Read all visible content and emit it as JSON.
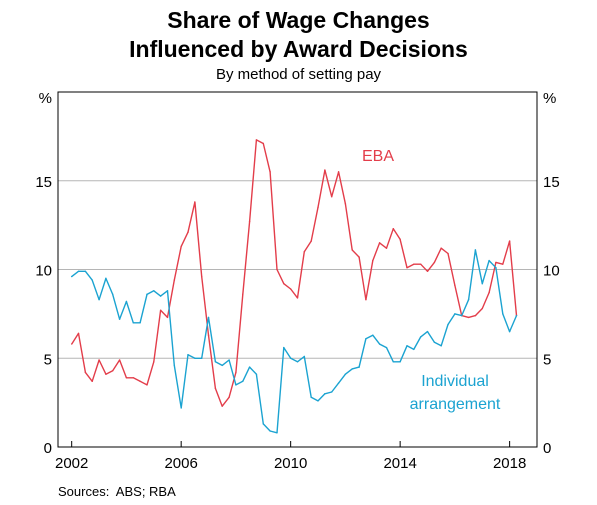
{
  "header": {
    "title_line1": "Share of Wage Changes",
    "title_line2": "Influenced by Award Decisions",
    "subtitle": "By method of setting pay"
  },
  "footer": {
    "sources": "Sources:  ABS; RBA"
  },
  "chart_data": {
    "type": "line",
    "title": "Share of Wage Changes Influenced by Award Decisions",
    "subtitle": "By method of setting pay",
    "y_unit_left": "%",
    "y_unit_right": "%",
    "ylim": [
      0,
      20
    ],
    "yticks": [
      0,
      5,
      10,
      15
    ],
    "xlim": [
      2001.5,
      2019.0
    ],
    "xticks": [
      2002,
      2006,
      2010,
      2014,
      2018
    ],
    "grid": true,
    "colors": {
      "EBA": "#e33d4a",
      "Individual arrangement": "#1ba3d1"
    },
    "series": [
      {
        "name": "EBA",
        "label_lines": [
          "EBA"
        ],
        "x": [
          2002.0,
          2002.25,
          2002.5,
          2002.75,
          2003.0,
          2003.25,
          2003.5,
          2003.75,
          2004.0,
          2004.25,
          2004.5,
          2004.75,
          2005.0,
          2005.25,
          2005.5,
          2005.75,
          2006.0,
          2006.25,
          2006.5,
          2006.75,
          2007.0,
          2007.25,
          2007.5,
          2007.75,
          2008.0,
          2008.25,
          2008.5,
          2008.75,
          2009.0,
          2009.25,
          2009.5,
          2009.75,
          2010.0,
          2010.25,
          2010.5,
          2010.75,
          2011.0,
          2011.25,
          2011.5,
          2011.75,
          2012.0,
          2012.25,
          2012.5,
          2012.75,
          2013.0,
          2013.25,
          2013.5,
          2013.75,
          2014.0,
          2014.25,
          2014.5,
          2014.75,
          2015.0,
          2015.25,
          2015.5,
          2015.75,
          2016.0,
          2016.25,
          2016.5,
          2016.75,
          2017.0,
          2017.25,
          2017.5,
          2017.75,
          2018.0,
          2018.25
        ],
        "values": [
          5.8,
          6.4,
          4.2,
          3.7,
          4.9,
          4.1,
          4.3,
          4.9,
          3.9,
          3.9,
          3.7,
          3.5,
          4.8,
          7.7,
          7.3,
          9.4,
          11.3,
          12.1,
          13.8,
          9.6,
          6.3,
          3.3,
          2.3,
          2.8,
          4.2,
          8.6,
          12.7,
          17.3,
          17.1,
          15.5,
          10.0,
          9.2,
          8.9,
          8.4,
          11.0,
          11.6,
          13.5,
          15.6,
          14.1,
          15.5,
          13.7,
          11.1,
          10.7,
          8.3,
          10.5,
          11.5,
          11.2,
          12.3,
          11.7,
          10.1,
          10.3,
          10.3,
          9.9,
          10.4,
          11.2,
          10.9,
          9.1,
          7.4,
          7.3,
          7.4,
          7.8,
          8.7,
          10.4,
          10.3,
          11.6,
          7.4
        ]
      },
      {
        "name": "Individual arrangement",
        "label_lines": [
          "Individual",
          "arrangement"
        ],
        "x": [
          2002.0,
          2002.25,
          2002.5,
          2002.75,
          2003.0,
          2003.25,
          2003.5,
          2003.75,
          2004.0,
          2004.25,
          2004.5,
          2004.75,
          2005.0,
          2005.25,
          2005.5,
          2005.75,
          2006.0,
          2006.25,
          2006.5,
          2006.75,
          2007.0,
          2007.25,
          2007.5,
          2007.75,
          2008.0,
          2008.25,
          2008.5,
          2008.75,
          2009.0,
          2009.25,
          2009.5,
          2009.75,
          2010.0,
          2010.25,
          2010.5,
          2010.75,
          2011.0,
          2011.25,
          2011.5,
          2011.75,
          2012.0,
          2012.25,
          2012.5,
          2012.75,
          2013.0,
          2013.25,
          2013.5,
          2013.75,
          2014.0,
          2014.25,
          2014.5,
          2014.75,
          2015.0,
          2015.25,
          2015.5,
          2015.75,
          2016.0,
          2016.25,
          2016.5,
          2016.75,
          2017.0,
          2017.25,
          2017.5,
          2017.75,
          2018.0,
          2018.25
        ],
        "values": [
          9.6,
          9.9,
          9.9,
          9.4,
          8.3,
          9.5,
          8.6,
          7.2,
          8.2,
          7.0,
          7.0,
          8.6,
          8.8,
          8.5,
          8.8,
          4.6,
          2.2,
          5.2,
          5.0,
          5.0,
          7.3,
          4.8,
          4.6,
          4.9,
          3.5,
          3.7,
          4.5,
          4.1,
          1.3,
          0.9,
          0.8,
          5.6,
          5.0,
          4.8,
          5.1,
          2.8,
          2.6,
          3.0,
          3.1,
          3.6,
          4.1,
          4.4,
          4.5,
          6.1,
          6.3,
          5.8,
          5.6,
          4.8,
          4.8,
          5.7,
          5.5,
          6.2,
          6.5,
          5.9,
          5.7,
          6.9,
          7.5,
          7.4,
          8.3,
          11.1,
          9.2,
          10.5,
          10.1,
          7.5,
          6.5,
          7.4
        ]
      }
    ]
  }
}
